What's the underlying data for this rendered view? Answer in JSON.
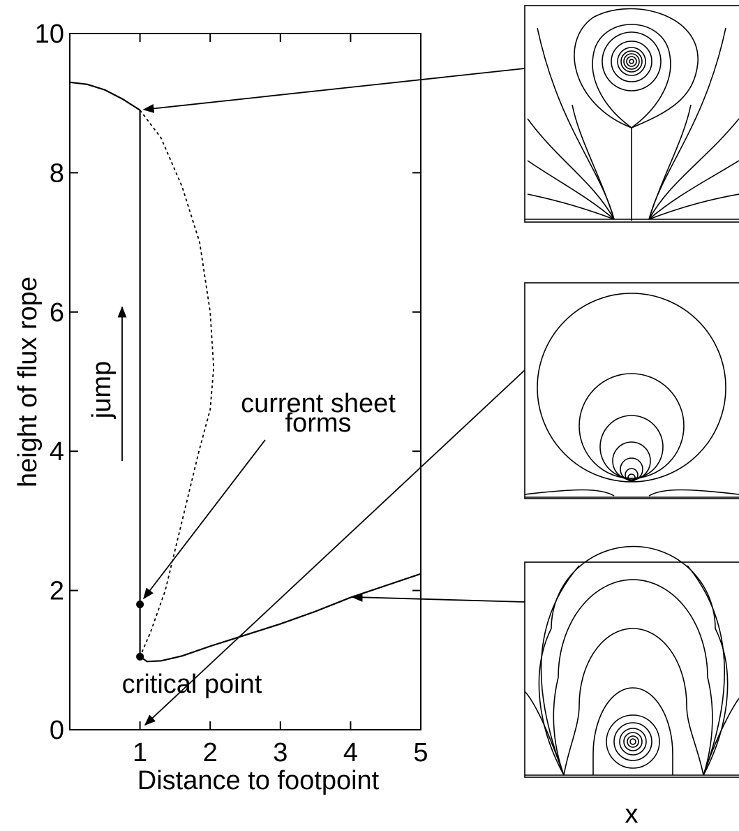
{
  "chart_data": {
    "type": "line",
    "xlabel": "Distance to footpoint",
    "ylabel": "height of flux rope",
    "xlim": [
      0,
      5
    ],
    "xticks": [
      1,
      2,
      3,
      4,
      5
    ],
    "ylim": [
      0,
      10
    ],
    "yticks": [
      0,
      2,
      4,
      6,
      8,
      10
    ],
    "series": [
      {
        "color": "#000000",
        "style": "solid",
        "x": [
          0,
          0.25,
          0.5,
          0.75,
          1
        ],
        "values": [
          9.3,
          9.27,
          9.19,
          9.06,
          8.9
        ]
      },
      {
        "color": "#000000",
        "style": "solid",
        "x": [
          1,
          1
        ],
        "values": [
          8.9,
          1.05
        ]
      },
      {
        "color": "#000000",
        "style": "dashed",
        "x": [
          1,
          1.3,
          1.6,
          1.85,
          2.0,
          2.05,
          2.0,
          1.84,
          1.6,
          1.36,
          1.15,
          1
        ],
        "values": [
          8.9,
          8.5,
          7.8,
          7.0,
          6.0,
          5.2,
          4.6,
          4.0,
          3.0,
          2.0,
          1.4,
          1.05
        ]
      },
      {
        "color": "#000000",
        "style": "solid",
        "x": [
          1,
          1.1,
          1.3,
          1.6,
          2,
          2.5,
          3,
          3.5,
          4,
          4.5,
          5
        ],
        "values": [
          1.05,
          0.98,
          0.99,
          1.06,
          1.2,
          1.36,
          1.52,
          1.7,
          1.9,
          2.07,
          2.24
        ]
      },
      {
        "color": "#000000",
        "style": "points",
        "x": [
          1,
          1
        ],
        "values": [
          1.8,
          1.05
        ]
      }
    ],
    "annotations": [
      "jump",
      "current sheet",
      "forms",
      "critical point",
      "x"
    ]
  }
}
